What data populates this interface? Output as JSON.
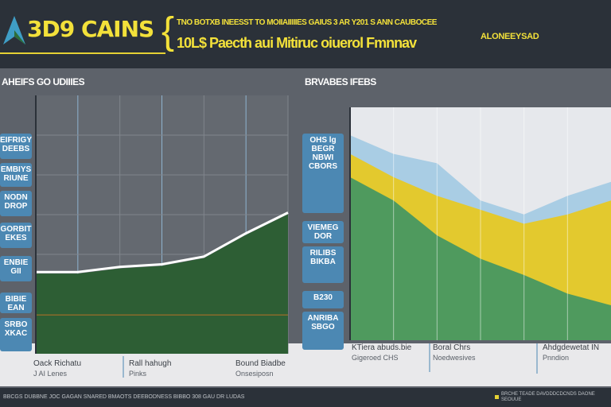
{
  "header": {
    "title": "3D9 CAINS",
    "subtitle_line1": "TNO BOTXB INEESST TO MOIIAIIIIIES GAIUS 3 AR Y201 S ANN CAUBOCEE",
    "subtitle_line2": "10L$ Paecth aui Mitiruc oiuerol Fmnnav",
    "subtitle_note": "ALONEEYSAD"
  },
  "sections": {
    "left_label": "AHEIFS GO UDIIIES",
    "right_label": "BRVABES IFEBS"
  },
  "left_boxes": [
    "EIFRIGY\nDEEBS",
    "EMBIYS\nRIUNE",
    "NODN\nDROP",
    "GORBIT\nEKES",
    "ENBIE\nGII",
    "BIBIE\nEAN",
    "SRBO\nXKAC"
  ],
  "middle_boxes": [
    "OHS lg\nBEGR\nNBWI\nCBORS",
    "VIEMEG\nDOR",
    "RILIBS\nBIKBA",
    "B230",
    "ANRIBA\nSBGO"
  ],
  "captions": [
    {
      "title": "Oack Richatu",
      "sub": "J AI Lenes"
    },
    {
      "title": "Rall hahugh",
      "sub": "Pinks"
    },
    {
      "title": "Bound Biadbe",
      "sub": "Onsesiposn"
    },
    {
      "title": "KTiera abuds.bie",
      "sub": "Gigeroed CHS"
    },
    {
      "title": "Boral Chrs",
      "sub": "Noedwesives"
    },
    {
      "title": "Ahdgdewetat IN",
      "sub": "Pnndion"
    }
  ],
  "footer": {
    "left_text": "BBCGS DUBBNE JOC GAGAN SNARED BMAOTS DEEBODNESS BIBBO 308 GAU DR LUDAS",
    "right_text": "BRCHE TEADE DAVDDDCDCNDS DAONE SEOUUE"
  },
  "colors": {
    "header_bg": "#2b3139",
    "accent_yellow": "#f3e13a",
    "box_blue": "#4c88b3",
    "area_green": "#2d5e34",
    "layer_green": "#4f9a5e",
    "layer_yellow": "#e3c92e",
    "layer_blue": "#a9cde4"
  },
  "chart_data": [
    {
      "type": "area",
      "x": [
        0,
        1,
        2,
        3,
        4,
        5,
        6
      ],
      "series": [
        {
          "values": [
            31,
            31,
            33,
            34,
            37,
            46,
            54
          ],
          "color": "#2d5e34"
        }
      ],
      "ylim": [
        0,
        100
      ],
      "grid": true,
      "reference_line": 15
    },
    {
      "type": "area",
      "stacked": false,
      "x": [
        0,
        1,
        2,
        3,
        4,
        5,
        6
      ],
      "series": [
        {
          "values": [
            88,
            80,
            76,
            60,
            54,
            62,
            68
          ],
          "color": "#a9cde4"
        },
        {
          "values": [
            80,
            70,
            62,
            56,
            50,
            54,
            60
          ],
          "color": "#e3c92e"
        },
        {
          "values": [
            70,
            60,
            45,
            35,
            28,
            20,
            15
          ],
          "color": "#4f9a5e"
        }
      ],
      "ylim": [
        0,
        100
      ],
      "grid": true
    }
  ]
}
